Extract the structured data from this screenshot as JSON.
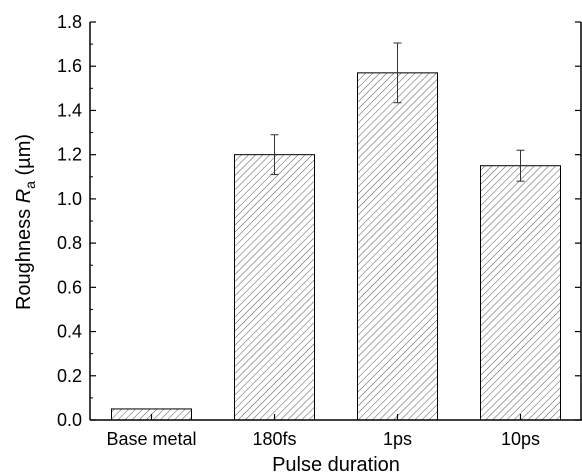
{
  "chart_data": {
    "type": "bar",
    "categories": [
      "Base metal",
      "180fs",
      "1ps",
      "10ps"
    ],
    "values": [
      0.05,
      1.2,
      1.57,
      1.15
    ],
    "errors": [
      0.0,
      0.09,
      0.135,
      0.07
    ],
    "xlabel": "Pulse duration",
    "ylabel_main": "Roughness ",
    "ylabel_italic": "R",
    "ylabel_sub": "a",
    "ylabel_unit": " (µm)",
    "ylim": [
      0,
      1.8
    ],
    "yticks": [
      "0.0",
      "0.2",
      "0.4",
      "0.6",
      "0.8",
      "1.0",
      "1.2",
      "1.4",
      "1.6",
      "1.8"
    ],
    "bar_fill": "hatched",
    "colors": {
      "bar_stroke": "#000000",
      "hatch": "#555555",
      "axis": "#000000"
    }
  }
}
